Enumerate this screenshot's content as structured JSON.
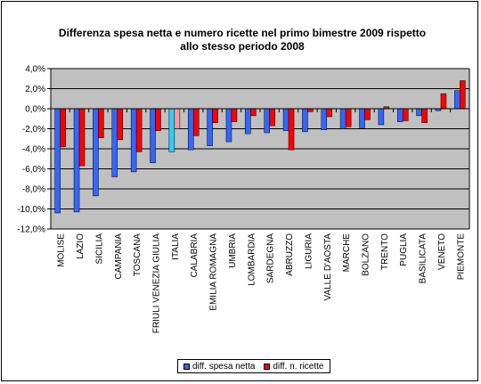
{
  "chart_data": {
    "type": "bar",
    "title_line1": "Differenza spesa netta e numero ricette nel primo bimestre 2009 rispetto",
    "title_line2": "allo stesso periodo 2008",
    "categories": [
      "MOLISE",
      "LAZIO",
      "SICILIA",
      "CAMPANIA",
      "TOSCANA",
      "FRIULI VENEZIA GIULIA",
      "ITALIA",
      "CALABRIA",
      "EMILIA ROMAGNA",
      "UMBRIA",
      "LOMBARDIA",
      "SARDEGNA",
      "ABRUZZO",
      "LIGURIA",
      "VALLE D'AOSTA",
      "MARCHE",
      "BOLZANO",
      "TRENTO",
      "PUGLIA",
      "BASILICATA",
      "VENETO",
      "PIEMONTE"
    ],
    "y_ticks": [
      "4,0%",
      "2,0%",
      "0,0%",
      "-2,0%",
      "-4,0%",
      "-6,0%",
      "-8,0%",
      "-10,0%",
      "-12,0%"
    ],
    "ylim": [
      -12,
      4
    ],
    "grid": true,
    "legend_position": "bottom",
    "highlight_category": "ITALIA",
    "series": [
      {
        "name": "diff. spesa netta",
        "color": "#3366ff",
        "highlight_color": "#33ccff",
        "values": [
          -10.4,
          -10.3,
          -8.7,
          -6.8,
          -6.3,
          -5.4,
          -4.3,
          -4.1,
          -3.7,
          -3.3,
          -2.5,
          -2.4,
          -2.2,
          -2.3,
          -2.1,
          -2.0,
          -1.9,
          -1.6,
          -1.3,
          -0.7,
          -0.2,
          1.8
        ]
      },
      {
        "name": "diff. n. ricette",
        "color": "#ff0000",
        "highlight_color": "#ff9999",
        "values": [
          -3.8,
          -5.7,
          -2.9,
          -3.1,
          -4.3,
          -2.2,
          -2.0,
          -2.7,
          -1.4,
          -1.3,
          -0.7,
          -1.7,
          -4.1,
          -0.3,
          -0.8,
          -1.8,
          -1.1,
          0.2,
          -1.2,
          -1.4,
          1.5,
          2.8
        ]
      }
    ]
  }
}
